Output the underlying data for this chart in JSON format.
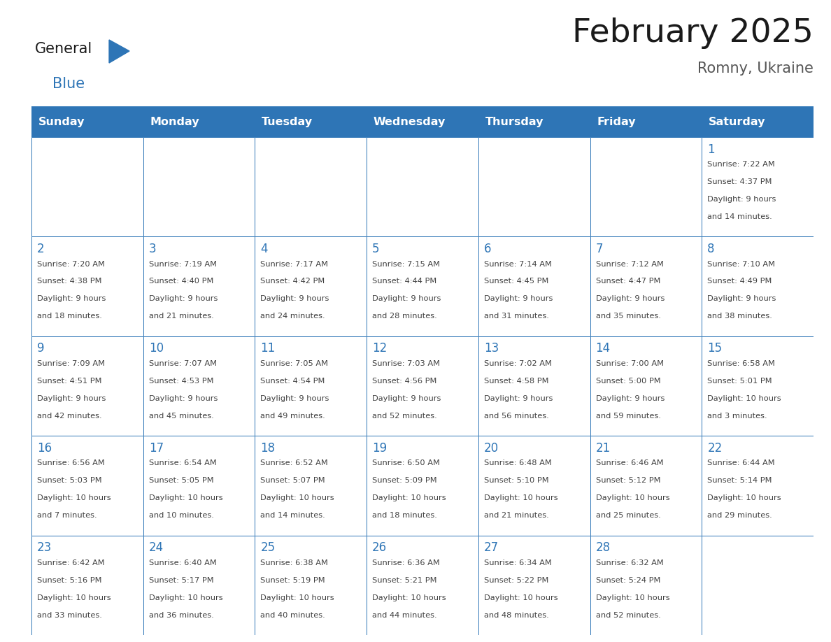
{
  "title": "February 2025",
  "subtitle": "Romny, Ukraine",
  "header_bg": "#2E75B6",
  "header_text_color": "#FFFFFF",
  "border_color": "#2E75B6",
  "day_number_color": "#2E75B6",
  "cell_text_color": "#404040",
  "days_of_week": [
    "Sunday",
    "Monday",
    "Tuesday",
    "Wednesday",
    "Thursday",
    "Friday",
    "Saturday"
  ],
  "title_color": "#1a1a1a",
  "subtitle_color": "#555555",
  "logo_general_color": "#1a1a1a",
  "logo_blue_color": "#2E75B6",
  "calendar": [
    [
      null,
      null,
      null,
      null,
      null,
      null,
      {
        "day": 1,
        "sunrise": "7:22 AM",
        "sunset": "4:37 PM",
        "daylight_hrs": 9,
        "daylight_min": 14
      }
    ],
    [
      {
        "day": 2,
        "sunrise": "7:20 AM",
        "sunset": "4:38 PM",
        "daylight_hrs": 9,
        "daylight_min": 18
      },
      {
        "day": 3,
        "sunrise": "7:19 AM",
        "sunset": "4:40 PM",
        "daylight_hrs": 9,
        "daylight_min": 21
      },
      {
        "day": 4,
        "sunrise": "7:17 AM",
        "sunset": "4:42 PM",
        "daylight_hrs": 9,
        "daylight_min": 24
      },
      {
        "day": 5,
        "sunrise": "7:15 AM",
        "sunset": "4:44 PM",
        "daylight_hrs": 9,
        "daylight_min": 28
      },
      {
        "day": 6,
        "sunrise": "7:14 AM",
        "sunset": "4:45 PM",
        "daylight_hrs": 9,
        "daylight_min": 31
      },
      {
        "day": 7,
        "sunrise": "7:12 AM",
        "sunset": "4:47 PM",
        "daylight_hrs": 9,
        "daylight_min": 35
      },
      {
        "day": 8,
        "sunrise": "7:10 AM",
        "sunset": "4:49 PM",
        "daylight_hrs": 9,
        "daylight_min": 38
      }
    ],
    [
      {
        "day": 9,
        "sunrise": "7:09 AM",
        "sunset": "4:51 PM",
        "daylight_hrs": 9,
        "daylight_min": 42
      },
      {
        "day": 10,
        "sunrise": "7:07 AM",
        "sunset": "4:53 PM",
        "daylight_hrs": 9,
        "daylight_min": 45
      },
      {
        "day": 11,
        "sunrise": "7:05 AM",
        "sunset": "4:54 PM",
        "daylight_hrs": 9,
        "daylight_min": 49
      },
      {
        "day": 12,
        "sunrise": "7:03 AM",
        "sunset": "4:56 PM",
        "daylight_hrs": 9,
        "daylight_min": 52
      },
      {
        "day": 13,
        "sunrise": "7:02 AM",
        "sunset": "4:58 PM",
        "daylight_hrs": 9,
        "daylight_min": 56
      },
      {
        "day": 14,
        "sunrise": "7:00 AM",
        "sunset": "5:00 PM",
        "daylight_hrs": 9,
        "daylight_min": 59
      },
      {
        "day": 15,
        "sunrise": "6:58 AM",
        "sunset": "5:01 PM",
        "daylight_hrs": 10,
        "daylight_min": 3
      }
    ],
    [
      {
        "day": 16,
        "sunrise": "6:56 AM",
        "sunset": "5:03 PM",
        "daylight_hrs": 10,
        "daylight_min": 7
      },
      {
        "day": 17,
        "sunrise": "6:54 AM",
        "sunset": "5:05 PM",
        "daylight_hrs": 10,
        "daylight_min": 10
      },
      {
        "day": 18,
        "sunrise": "6:52 AM",
        "sunset": "5:07 PM",
        "daylight_hrs": 10,
        "daylight_min": 14
      },
      {
        "day": 19,
        "sunrise": "6:50 AM",
        "sunset": "5:09 PM",
        "daylight_hrs": 10,
        "daylight_min": 18
      },
      {
        "day": 20,
        "sunrise": "6:48 AM",
        "sunset": "5:10 PM",
        "daylight_hrs": 10,
        "daylight_min": 21
      },
      {
        "day": 21,
        "sunrise": "6:46 AM",
        "sunset": "5:12 PM",
        "daylight_hrs": 10,
        "daylight_min": 25
      },
      {
        "day": 22,
        "sunrise": "6:44 AM",
        "sunset": "5:14 PM",
        "daylight_hrs": 10,
        "daylight_min": 29
      }
    ],
    [
      {
        "day": 23,
        "sunrise": "6:42 AM",
        "sunset": "5:16 PM",
        "daylight_hrs": 10,
        "daylight_min": 33
      },
      {
        "day": 24,
        "sunrise": "6:40 AM",
        "sunset": "5:17 PM",
        "daylight_hrs": 10,
        "daylight_min": 36
      },
      {
        "day": 25,
        "sunrise": "6:38 AM",
        "sunset": "5:19 PM",
        "daylight_hrs": 10,
        "daylight_min": 40
      },
      {
        "day": 26,
        "sunrise": "6:36 AM",
        "sunset": "5:21 PM",
        "daylight_hrs": 10,
        "daylight_min": 44
      },
      {
        "day": 27,
        "sunrise": "6:34 AM",
        "sunset": "5:22 PM",
        "daylight_hrs": 10,
        "daylight_min": 48
      },
      {
        "day": 28,
        "sunrise": "6:32 AM",
        "sunset": "5:24 PM",
        "daylight_hrs": 10,
        "daylight_min": 52
      },
      null
    ]
  ]
}
